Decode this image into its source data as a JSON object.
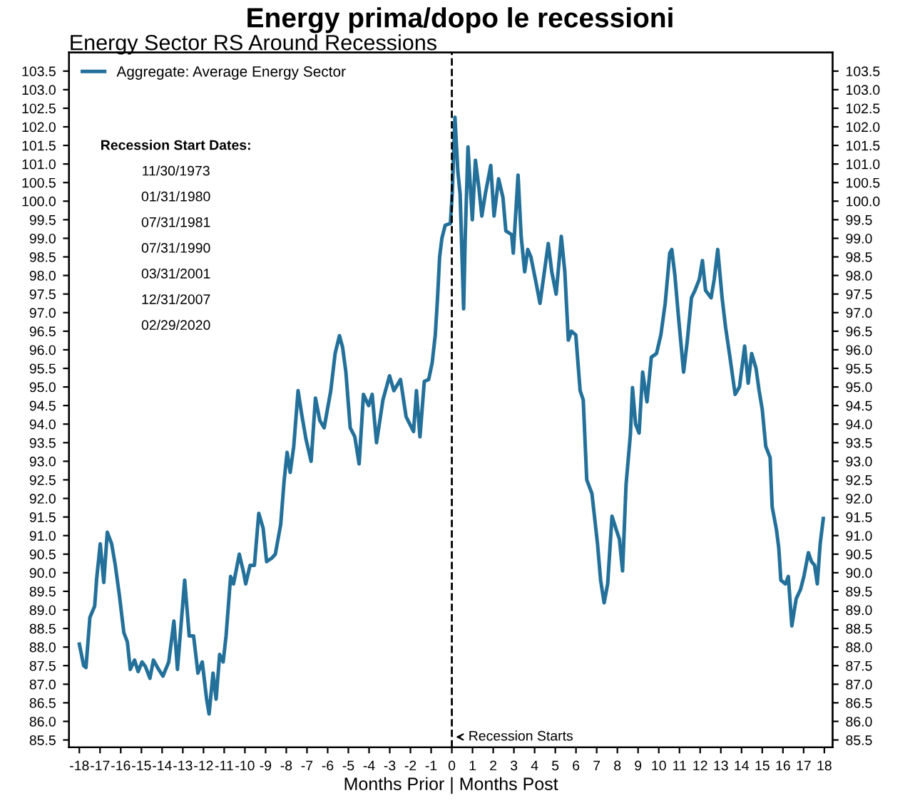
{
  "chart_data": {
    "type": "line",
    "title": "Energy prima/dopo le recessioni",
    "subtitle": "Energy Sector RS Around Recessions",
    "xlabel": "Months Prior | Months Post",
    "annotations": [
      "Recession Start Dates:",
      "11/30/1973",
      "01/31/1980",
      "07/31/1981",
      "07/31/1990",
      "03/31/2001",
      "12/31/2007",
      "02/29/2020"
    ],
    "ref_lines": [
      {
        "axis": "x",
        "value": 0,
        "label": "Recession Starts",
        "color": "#000000",
        "line_style": "dashed"
      }
    ],
    "legend": "top left",
    "grid": false,
    "marker": "none",
    "line_style": "solid",
    "xlim": [
      -18.5,
      18.4
    ],
    "ylim": [
      85.3,
      104.0
    ],
    "y2lim": [
      85.3,
      104.0
    ],
    "xticks": [
      -18,
      -17,
      -16,
      -15,
      -14,
      -13,
      -12,
      -11,
      -10,
      -9,
      -8,
      -7,
      -6,
      -5,
      -4,
      -3,
      -2,
      -1,
      0,
      1,
      2,
      3,
      4,
      5,
      6,
      7,
      8,
      9,
      10,
      11,
      12,
      13,
      14,
      15,
      16,
      17,
      18
    ],
    "yticks": [
      {
        "value": 85.5,
        "label": "85.5"
      },
      {
        "value": 86,
        "label": "86.0"
      },
      {
        "value": 86.5,
        "label": "86.5"
      },
      {
        "value": 87,
        "label": "87.0"
      },
      {
        "value": 87.5,
        "label": "87.5"
      },
      {
        "value": 88,
        "label": "88.0"
      },
      {
        "value": 88.5,
        "label": "88.5"
      },
      {
        "value": 89,
        "label": "89.0"
      },
      {
        "value": 89.5,
        "label": "89.5"
      },
      {
        "value": 90,
        "label": "90.0"
      },
      {
        "value": 90.5,
        "label": "90.5"
      },
      {
        "value": 91,
        "label": "91.0"
      },
      {
        "value": 91.5,
        "label": "91.5"
      },
      {
        "value": 92,
        "label": "92.0"
      },
      {
        "value": 92.5,
        "label": "92.5"
      },
      {
        "value": 93,
        "label": "93.0"
      },
      {
        "value": 93.5,
        "label": "93.5"
      },
      {
        "value": 94,
        "label": "94.0"
      },
      {
        "value": 94.5,
        "label": "94.5"
      },
      {
        "value": 95,
        "label": "95.0"
      },
      {
        "value": 95.5,
        "label": "95.5"
      },
      {
        "value": 96,
        "label": "96.0"
      },
      {
        "value": 96.5,
        "label": "96.5"
      },
      {
        "value": 97,
        "label": "97.0"
      },
      {
        "value": 97.5,
        "label": "97.5"
      },
      {
        "value": 98,
        "label": "98.0"
      },
      {
        "value": 98.5,
        "label": "98.5"
      },
      {
        "value": 99,
        "label": "99.0"
      },
      {
        "value": 99.5,
        "label": "99.5"
      },
      {
        "value": 100,
        "label": "100.0"
      },
      {
        "value": 100.5,
        "label": "100.5"
      },
      {
        "value": 101,
        "label": "101.0"
      },
      {
        "value": 101.5,
        "label": "101.5"
      },
      {
        "value": 102,
        "label": "102.0"
      },
      {
        "value": 102.5,
        "label": "102.5"
      },
      {
        "value": 103,
        "label": "103.0"
      },
      {
        "value": 103.5,
        "label": "103.5"
      }
    ],
    "y2ticks": [
      {
        "value": 85.5,
        "label": "85.5"
      },
      {
        "value": 86,
        "label": "86.0"
      },
      {
        "value": 86.5,
        "label": "86.5"
      },
      {
        "value": 87,
        "label": "87.0"
      },
      {
        "value": 87.5,
        "label": "87.5"
      },
      {
        "value": 88,
        "label": "88.0"
      },
      {
        "value": 88.5,
        "label": "88.5"
      },
      {
        "value": 89,
        "label": "89.0"
      },
      {
        "value": 89.5,
        "label": "89.5"
      },
      {
        "value": 90,
        "label": "90.0"
      },
      {
        "value": 90.5,
        "label": "90.5"
      },
      {
        "value": 91,
        "label": "91.0"
      },
      {
        "value": 91.5,
        "label": "91.5"
      },
      {
        "value": 92,
        "label": "92.0"
      },
      {
        "value": 92.5,
        "label": "92.5"
      },
      {
        "value": 93,
        "label": "93.0"
      },
      {
        "value": 93.5,
        "label": "93.5"
      },
      {
        "value": 94,
        "label": "94.0"
      },
      {
        "value": 94.5,
        "label": "94.5"
      },
      {
        "value": 95,
        "label": "95.0"
      },
      {
        "value": 95.5,
        "label": "95.5"
      },
      {
        "value": 96,
        "label": "96.0"
      },
      {
        "value": 96.5,
        "label": "96.5"
      },
      {
        "value": 97,
        "label": "97.0"
      },
      {
        "value": 97.5,
        "label": "97.5"
      },
      {
        "value": 98,
        "label": "98.0"
      },
      {
        "value": 98.5,
        "label": "98.5"
      },
      {
        "value": 99,
        "label": "99.0"
      },
      {
        "value": 99.5,
        "label": "99.5"
      },
      {
        "value": 100,
        "label": "100.0"
      },
      {
        "value": 100.5,
        "label": "100.5"
      },
      {
        "value": 101,
        "label": "101.0"
      },
      {
        "value": 101.5,
        "label": "101.5"
      },
      {
        "value": 102,
        "label": "102.0"
      },
      {
        "value": 102.5,
        "label": "102.5"
      },
      {
        "value": 103,
        "label": "103.0"
      },
      {
        "value": 103.5,
        "label": "103.5"
      }
    ],
    "series": [
      {
        "name": "Aggregate: Average Energy Sector",
        "color": "#23709a",
        "x": [
          -18.0,
          -17.79,
          -17.68,
          -17.49,
          -17.26,
          -17.16,
          -16.99,
          -16.82,
          -16.65,
          -16.44,
          -16.27,
          -16.06,
          -15.85,
          -15.68,
          -15.54,
          -15.33,
          -15.16,
          -14.97,
          -14.8,
          -14.59,
          -14.42,
          -14.17,
          -13.96,
          -13.68,
          -13.43,
          -13.26,
          -12.91,
          -12.69,
          -12.48,
          -12.27,
          -12.06,
          -11.85,
          -11.73,
          -11.54,
          -11.39,
          -11.22,
          -11.05,
          -10.91,
          -10.69,
          -10.55,
          -10.27,
          -10.06,
          -9.96,
          -9.75,
          -9.54,
          -9.33,
          -9.12,
          -8.95,
          -8.69,
          -8.53,
          -8.27,
          -8.11,
          -7.96,
          -7.81,
          -7.64,
          -7.43,
          -7.26,
          -7.05,
          -6.8,
          -6.59,
          -6.38,
          -6.17,
          -5.85,
          -5.64,
          -5.43,
          -5.28,
          -5.12,
          -4.91,
          -4.69,
          -4.48,
          -4.27,
          -4.02,
          -3.85,
          -3.64,
          -3.33,
          -3.01,
          -2.8,
          -2.48,
          -2.21,
          -1.85,
          -1.71,
          -1.54,
          -1.33,
          -1.12,
          -0.95,
          -0.8,
          -0.69,
          -0.59,
          -0.48,
          -0.32,
          -0.07,
          0.02,
          0.15,
          0.29,
          0.4,
          0.57,
          0.65,
          0.78,
          0.99,
          1.14,
          1.31,
          1.45,
          1.62,
          1.88,
          2.04,
          2.26,
          2.47,
          2.61,
          2.89,
          2.97,
          3.2,
          3.35,
          3.52,
          3.67,
          3.82,
          4.09,
          4.26,
          4.41,
          4.66,
          4.83,
          5.04,
          5.29,
          5.46,
          5.63,
          5.78,
          5.99,
          6.2,
          6.35,
          6.52,
          6.77,
          7.04,
          7.19,
          7.36,
          7.53,
          7.74,
          7.95,
          8.1,
          8.25,
          8.42,
          8.63,
          8.73,
          8.88,
          9.05,
          9.22,
          9.43,
          9.64,
          9.89,
          10.1,
          10.31,
          10.53,
          10.63,
          10.78,
          10.95,
          11.2,
          11.37,
          11.58,
          11.75,
          11.96,
          12.11,
          12.26,
          12.53,
          12.68,
          12.85,
          13.06,
          13.23,
          13.44,
          13.69,
          13.9,
          14.15,
          14.32,
          14.49,
          14.7,
          14.85,
          15.0,
          15.17,
          15.38,
          15.48,
          15.69,
          15.8,
          15.9,
          16.12,
          16.26,
          16.43,
          16.64,
          16.85,
          17.02,
          17.23,
          17.38,
          17.53,
          17.66,
          17.8,
          17.95
        ],
        "values": [
          88.08,
          87.5,
          87.45,
          88.8,
          89.1,
          89.86,
          90.78,
          89.74,
          91.09,
          90.78,
          90.23,
          89.37,
          88.39,
          88.14,
          87.4,
          87.65,
          87.34,
          87.6,
          87.47,
          87.16,
          87.65,
          87.4,
          87.22,
          87.6,
          88.7,
          87.4,
          89.8,
          88.3,
          88.3,
          87.3,
          87.6,
          86.6,
          86.2,
          87.3,
          86.6,
          87.8,
          87.6,
          88.3,
          89.9,
          89.7,
          90.5,
          90.0,
          89.7,
          90.2,
          90.2,
          91.6,
          91.2,
          90.3,
          90.4,
          90.5,
          91.3,
          92.44,
          93.24,
          92.7,
          93.4,
          94.9,
          94.28,
          93.6,
          93.0,
          94.7,
          94.1,
          93.9,
          94.9,
          95.9,
          96.38,
          96.07,
          95.4,
          93.9,
          93.66,
          92.93,
          94.8,
          94.5,
          94.8,
          93.5,
          94.65,
          95.3,
          94.9,
          95.2,
          94.2,
          93.8,
          94.9,
          93.66,
          95.15,
          95.2,
          95.65,
          96.4,
          97.4,
          98.5,
          99.0,
          99.35,
          99.4,
          100.2,
          102.26,
          100.8,
          100.2,
          97.1,
          99.1,
          101.46,
          99.5,
          101.1,
          100.35,
          99.6,
          100.2,
          100.96,
          99.6,
          100.6,
          100.1,
          99.2,
          99.1,
          98.6,
          100.7,
          99.05,
          98.1,
          98.7,
          98.5,
          97.75,
          97.25,
          97.85,
          98.86,
          98.1,
          97.5,
          99.05,
          98.1,
          96.26,
          96.5,
          96.4,
          94.9,
          94.65,
          92.5,
          92.13,
          90.78,
          89.8,
          89.19,
          89.7,
          91.52,
          91.15,
          90.9,
          90.05,
          92.38,
          93.73,
          94.98,
          94.0,
          93.76,
          95.4,
          94.6,
          95.8,
          95.9,
          96.4,
          97.25,
          98.6,
          98.7,
          98.0,
          96.9,
          95.4,
          96.2,
          97.4,
          97.6,
          97.9,
          98.4,
          97.6,
          97.4,
          97.9,
          98.7,
          97.4,
          96.6,
          95.8,
          94.8,
          95.0,
          96.1,
          95.1,
          95.9,
          95.5,
          94.9,
          94.4,
          93.4,
          93.1,
          91.77,
          91.15,
          90.66,
          89.8,
          89.7,
          89.9,
          88.57,
          89.3,
          89.55,
          89.92,
          90.54,
          90.3,
          90.2,
          89.7,
          90.78,
          91.46
        ]
      }
    ]
  }
}
